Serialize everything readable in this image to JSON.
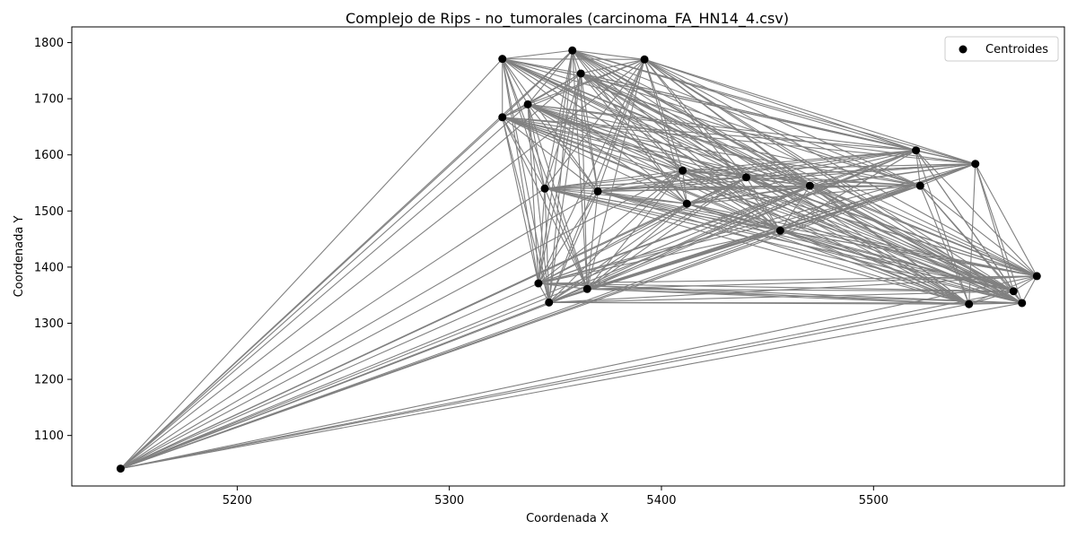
{
  "chart_data": {
    "type": "scatter",
    "title": "Complejo de Rips - no_tumorales (carcinoma_FA_HN14_4.csv)",
    "xlabel": "Coordenada X",
    "ylabel": "Coordenada Y",
    "xlim": [
      5122,
      5590
    ],
    "ylim": [
      1010,
      1828
    ],
    "xticks": [
      "5200",
      "5300",
      "5400",
      "5500"
    ],
    "yticks": [
      "1100",
      "1200",
      "1300",
      "1400",
      "1500",
      "1600",
      "1700",
      "1800"
    ],
    "legend": {
      "label": "Centroides",
      "location": "top-right"
    },
    "grid": false,
    "colors": {
      "points": "#000000",
      "edges": "#808080"
    },
    "points": [
      {
        "x": 5145,
        "y": 1041
      },
      {
        "x": 5325,
        "y": 1771
      },
      {
        "x": 5358,
        "y": 1786
      },
      {
        "x": 5392,
        "y": 1770
      },
      {
        "x": 5325,
        "y": 1667
      },
      {
        "x": 5337,
        "y": 1690
      },
      {
        "x": 5362,
        "y": 1745
      },
      {
        "x": 5342,
        "y": 1371
      },
      {
        "x": 5347,
        "y": 1337
      },
      {
        "x": 5365,
        "y": 1361
      },
      {
        "x": 5345,
        "y": 1540
      },
      {
        "x": 5370,
        "y": 1535
      },
      {
        "x": 5412,
        "y": 1513
      },
      {
        "x": 5410,
        "y": 1572
      },
      {
        "x": 5440,
        "y": 1560
      },
      {
        "x": 5470,
        "y": 1545
      },
      {
        "x": 5520,
        "y": 1608
      },
      {
        "x": 5522,
        "y": 1545
      },
      {
        "x": 5548,
        "y": 1584
      },
      {
        "x": 5545,
        "y": 1334
      },
      {
        "x": 5566,
        "y": 1357
      },
      {
        "x": 5570,
        "y": 1336
      },
      {
        "x": 5577,
        "y": 1384
      },
      {
        "x": 5456,
        "y": 1465
      }
    ],
    "edges": "all pairs"
  }
}
